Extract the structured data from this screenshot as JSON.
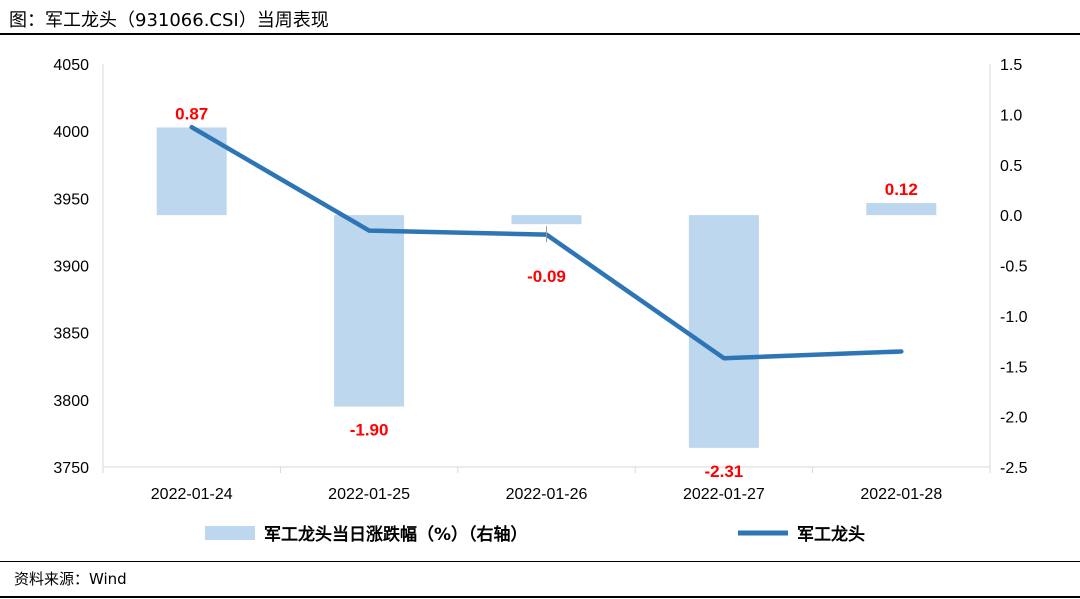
{
  "header": {
    "title": "图：军工龙头（931066.CSI）当周表现"
  },
  "footer": {
    "source": "资料来源：Wind"
  },
  "colors": {
    "bar": "#bdd7ee",
    "line": "#2e75b6",
    "label": "#ff0000",
    "axis": "#d9d9d9"
  },
  "chart_data": {
    "type": "bar+line",
    "categories": [
      "2022-01-24",
      "2022-01-25",
      "2022-01-26",
      "2022-01-27",
      "2022-01-28"
    ],
    "series": [
      {
        "name": "军工龙头当日涨跌幅（%）（右轴）",
        "type": "bar",
        "axis": "right",
        "values": [
          0.87,
          -1.9,
          -0.09,
          -2.31,
          0.12
        ],
        "labels": [
          "0.87",
          "-1.90",
          "-0.09",
          "-2.31",
          "0.12"
        ]
      },
      {
        "name": "军工龙头",
        "type": "line",
        "axis": "left",
        "values": [
          4003,
          3926,
          3923,
          3831,
          3836
        ]
      }
    ],
    "left_axis": {
      "ylim": [
        3750,
        4050
      ],
      "ticks": [
        "4050",
        "4000",
        "3950",
        "3900",
        "3850",
        "3800",
        "3750"
      ]
    },
    "right_axis": {
      "ylim": [
        -2.5,
        1.5
      ],
      "ticks": [
        "1.5",
        "1.0",
        "0.5",
        "0.0",
        "-0.5",
        "-1.0",
        "-1.5",
        "-2.0",
        "-2.5"
      ]
    },
    "grid": false,
    "legend": "bottom"
  }
}
